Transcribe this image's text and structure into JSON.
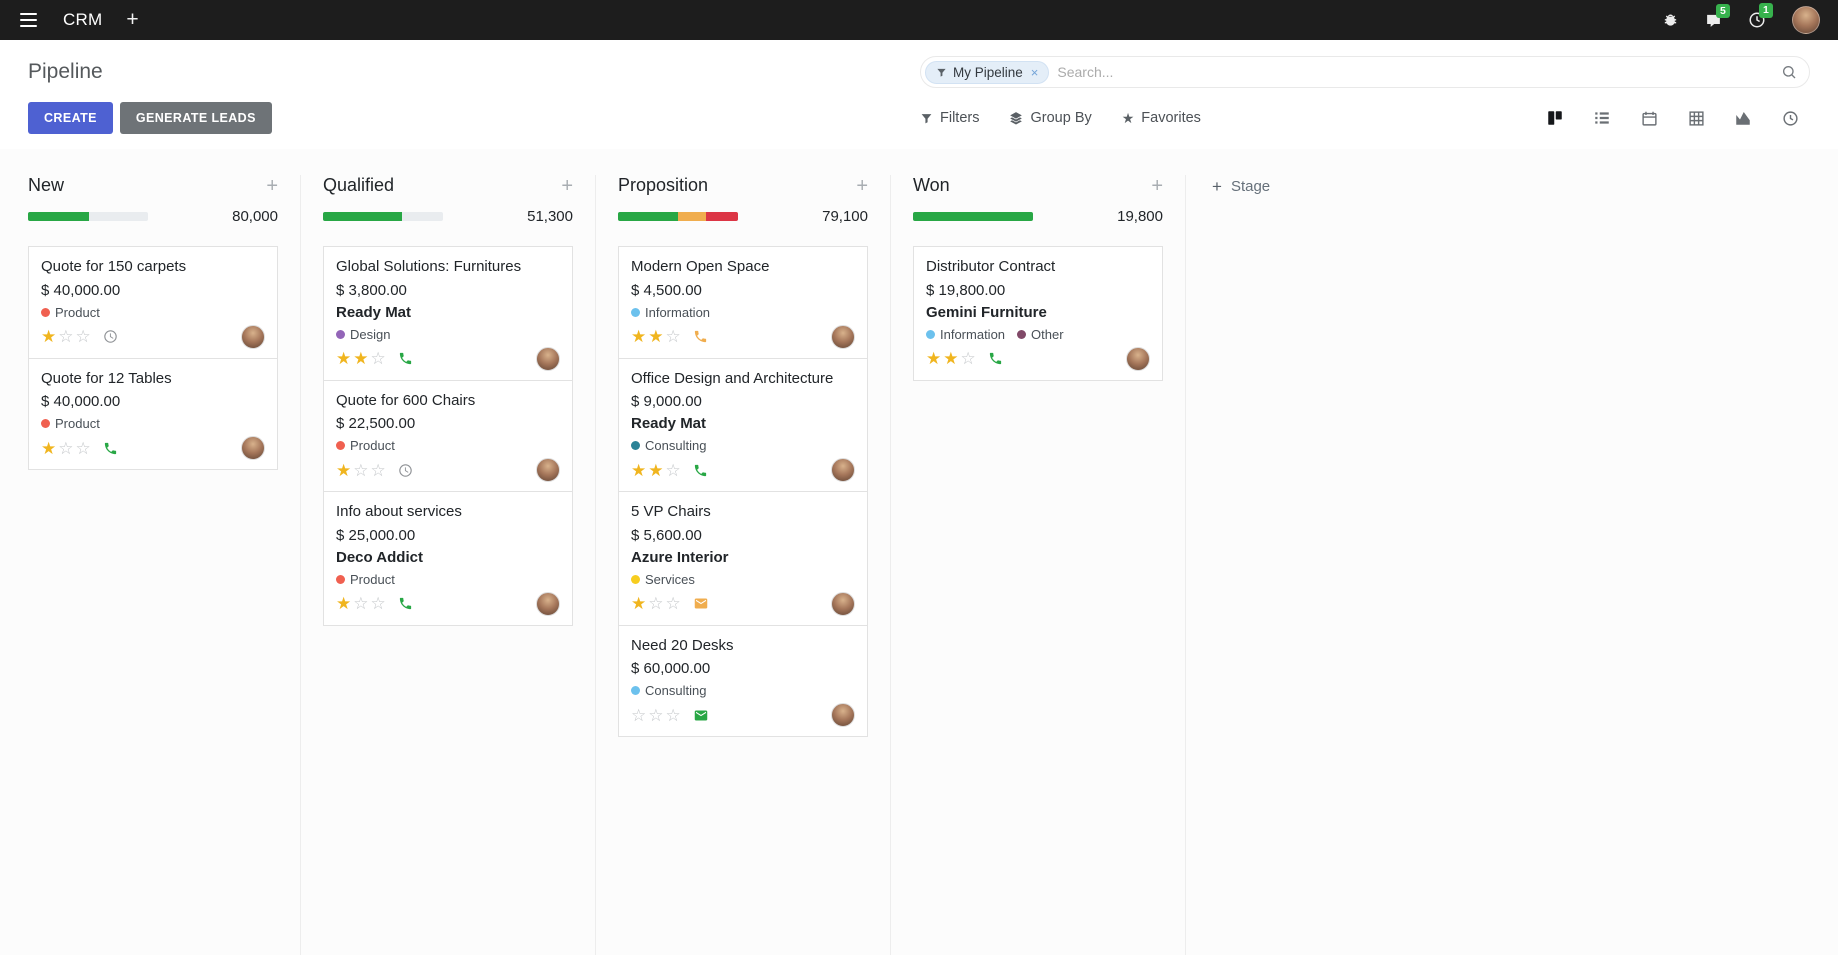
{
  "topbar": {
    "app_name": "CRM",
    "plus_label": "+",
    "messages_badge": "5",
    "activities_badge": "1",
    "icons": [
      "menu-icon",
      "plus-icon",
      "bug-icon",
      "messages-icon",
      "activities-icon",
      "user-avatar"
    ]
  },
  "control_panel": {
    "breadcrumb_title": "Pipeline",
    "create_label": "CREATE",
    "generate_leads_label": "GENERATE LEADS",
    "filters_label": "Filters",
    "group_by_label": "Group By",
    "favorites_label": "Favorites",
    "favorites_icon": "★",
    "search": {
      "facet_label": "My Pipeline",
      "facet_remove": "×",
      "placeholder": "Search..."
    },
    "view_switcher": {
      "active": "kanban",
      "views": [
        "kanban",
        "list",
        "calendar",
        "pivot",
        "graph",
        "activity"
      ]
    }
  },
  "board": {
    "quick_add_label": "+",
    "add_stage_plus": "+",
    "add_stage_label": "Stage",
    "columns": [
      {
        "title": "New",
        "total": "80,000",
        "progress": [
          {
            "color": "#28a745",
            "pct": 51
          }
        ],
        "cards": [
          {
            "title": "Quote for 150 carpets",
            "amount": "$ 40,000.00",
            "tags": [
              {
                "label": "Product",
                "color": "#F06050"
              }
            ],
            "stars_on": "★",
            "stars_off": "☆☆",
            "activity_icon": "clock-icon",
            "activity_color": "#8f9296"
          },
          {
            "title": "Quote for 12 Tables",
            "amount": "$ 40,000.00",
            "tags": [
              {
                "label": "Product",
                "color": "#F06050"
              }
            ],
            "stars_on": "★",
            "stars_off": "☆☆",
            "activity_icon": "phone-icon",
            "activity_color": "#28a745"
          }
        ]
      },
      {
        "title": "Qualified",
        "total": "51,300",
        "progress": [
          {
            "color": "#28a745",
            "pct": 66
          }
        ],
        "cards": [
          {
            "title": "Global Solutions: Furnitures",
            "amount": "$ 3,800.00",
            "partner": "Ready Mat",
            "tags": [
              {
                "label": "Design",
                "color": "#9365B8"
              }
            ],
            "stars_on": "★★",
            "stars_off": "☆",
            "activity_icon": "phone-icon",
            "activity_color": "#28a745"
          },
          {
            "title": "Quote for 600 Chairs",
            "amount": "$ 22,500.00",
            "tags": [
              {
                "label": "Product",
                "color": "#F06050"
              }
            ],
            "stars_on": "★",
            "stars_off": "☆☆",
            "activity_icon": "clock-icon",
            "activity_color": "#8f9296"
          },
          {
            "title": "Info about services",
            "amount": "$ 25,000.00",
            "partner": "Deco Addict",
            "tags": [
              {
                "label": "Product",
                "color": "#F06050"
              }
            ],
            "stars_on": "★",
            "stars_off": "☆☆",
            "activity_icon": "phone-icon",
            "activity_color": "#28a745"
          }
        ]
      },
      {
        "title": "Proposition",
        "total": "79,100",
        "progress": [
          {
            "color": "#28a745",
            "pct": 50
          },
          {
            "color": "#f0ad4e",
            "pct": 23
          },
          {
            "color": "#dc3545",
            "pct": 27
          }
        ],
        "cards": [
          {
            "title": "Modern Open Space",
            "amount": "$ 4,500.00",
            "tags": [
              {
                "label": "Information",
                "color": "#6CC1ED"
              }
            ],
            "stars_on": "★★",
            "stars_off": "☆",
            "activity_icon": "phone-icon",
            "activity_color": "#f0ad4e"
          },
          {
            "title": "Office Design and Architecture",
            "amount": "$ 9,000.00",
            "partner": "Ready Mat",
            "tags": [
              {
                "label": "Consulting",
                "color": "#2C8397"
              }
            ],
            "stars_on": "★★",
            "stars_off": "☆",
            "activity_icon": "phone-icon",
            "activity_color": "#28a745"
          },
          {
            "title": "5 VP Chairs",
            "amount": "$ 5,600.00",
            "partner": "Azure Interior",
            "tags": [
              {
                "label": "Services",
                "color": "#F7CD1F"
              }
            ],
            "stars_on": "★",
            "stars_off": "☆☆",
            "activity_icon": "email-icon",
            "activity_color": "#f0ad4e"
          },
          {
            "title": "Need 20 Desks",
            "amount": "$ 60,000.00",
            "tags": [
              {
                "label": "Consulting",
                "color": "#6CC1ED"
              }
            ],
            "stars_on": "",
            "stars_off": "☆☆☆",
            "activity_icon": "email-icon",
            "activity_color": "#28a745"
          }
        ]
      },
      {
        "title": "Won",
        "total": "19,800",
        "progress": [
          {
            "color": "#28a745",
            "pct": 100
          }
        ],
        "cards": [
          {
            "title": "Distributor Contract",
            "amount": "$ 19,800.00",
            "partner": "Gemini Furniture",
            "tags": [
              {
                "label": "Information",
                "color": "#6CC1ED"
              },
              {
                "label": "Other",
                "color": "#814968"
              }
            ],
            "stars_on": "★★",
            "stars_off": "☆",
            "activity_icon": "phone-icon",
            "activity_color": "#28a745"
          }
        ]
      }
    ]
  },
  "colors": {
    "accent": "#4e61d2",
    "secondary_button": "#6e7377",
    "success": "#28a745",
    "warning": "#f0ad4e",
    "danger": "#dc3545",
    "progress_track": "#e9ecef",
    "star_filled": "#f0b51f",
    "badge_green": "#37b24d",
    "topbar_bg": "#1d1d1d"
  }
}
